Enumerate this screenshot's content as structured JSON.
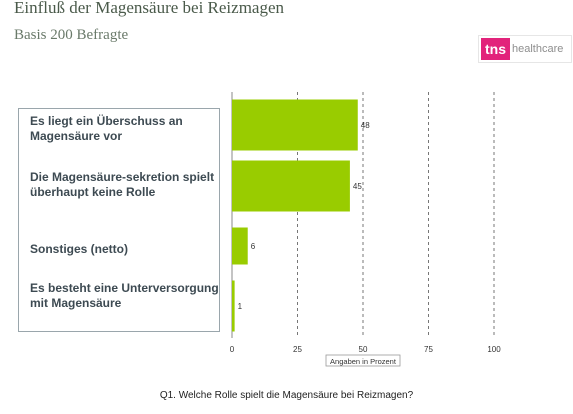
{
  "header": {
    "title": "Einfluß der Magensäure bei Reizmagen",
    "subtitle": "Basis 200 Befragte"
  },
  "logo": {
    "brand": "tns",
    "suffix": "healthcare",
    "brand_color": "#e2237b"
  },
  "chart_data": {
    "type": "bar",
    "orientation": "horizontal",
    "categories": [
      "Es liegt ein Überschuss an Magensäure vor",
      "Die Magensäure-sekretion spielt überhaupt keine Rolle",
      "Sonstiges (netto)",
      "Es besteht eine Unterversorgung mit Magensäure"
    ],
    "values": [
      48,
      45,
      6,
      1
    ],
    "xlim": [
      0,
      100
    ],
    "xticks": [
      0,
      25,
      50,
      75,
      100
    ],
    "xlabel": "Angaben in Prozent",
    "grid": "dashed vertical at 25, 50, 75, 100",
    "bar_color": "#99cc00"
  },
  "footer": {
    "question": "Q1. Welche Rolle spielt die Magensäure bei Reizmagen?"
  }
}
